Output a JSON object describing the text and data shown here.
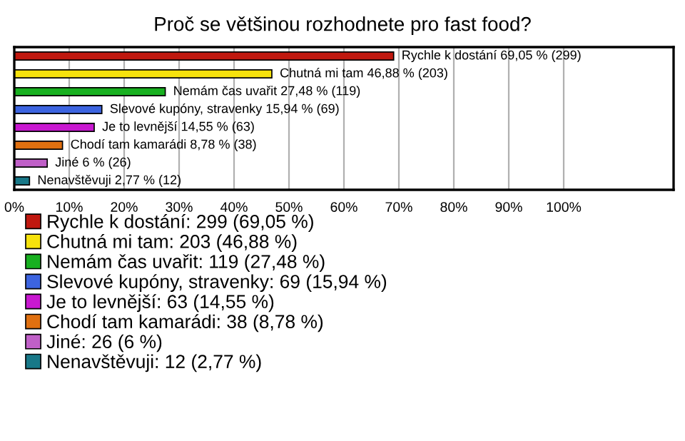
{
  "chart_data": {
    "type": "bar",
    "orientation": "horizontal",
    "title": "Proč se většinou rozhodnete pro fast food?",
    "categories": [
      null,
      null,
      null,
      null,
      null,
      null,
      null,
      null
    ],
    "series": [
      {
        "name": "Rychle k dostání: 299 (69,05 %)",
        "color": "#c0180f",
        "values": [
          69.05,
          null,
          null,
          null,
          null,
          null,
          null,
          null
        ],
        "value_labels": [
          "Rychle k dostání 69,05 % (299)",
          null,
          null,
          null,
          null,
          null,
          null,
          null
        ]
      },
      {
        "name": "Chutná mi tam: 203 (46,88 %)",
        "color": "#f6e20c",
        "values": [
          null,
          46.88,
          null,
          null,
          null,
          null,
          null,
          null
        ],
        "value_labels": [
          null,
          "Chutná mi tam 46,88 % (203)",
          null,
          null,
          null,
          null,
          null,
          null
        ]
      },
      {
        "name": "Nemám čas uvařit: 119 (27,48 %)",
        "color": "#18b020",
        "values": [
          null,
          null,
          27.48,
          null,
          null,
          null,
          null,
          null
        ],
        "value_labels": [
          null,
          null,
          "Nemám čas uvařit 27,48 % (119)",
          null,
          null,
          null,
          null,
          null
        ]
      },
      {
        "name": "Slevové kupóny, stravenky: 69 (15,94 %)",
        "color": "#3c64e0",
        "values": [
          null,
          null,
          null,
          15.94,
          null,
          null,
          null,
          null
        ],
        "value_labels": [
          null,
          null,
          null,
          "Slevové kupóny, stravenky 15,94 % (69)",
          null,
          null,
          null,
          null
        ]
      },
      {
        "name": "Je to levnější: 63 (14,55 %)",
        "color": "#c818d0",
        "values": [
          null,
          null,
          null,
          null,
          14.55,
          null,
          null,
          null
        ],
        "value_labels": [
          null,
          null,
          null,
          null,
          "Je to levnější 14,55 % (63)",
          null,
          null,
          null
        ]
      },
      {
        "name": "Chodí tam kamarádi: 38 (8,78 %)",
        "color": "#e07010",
        "values": [
          null,
          null,
          null,
          null,
          null,
          8.78,
          null,
          null
        ],
        "value_labels": [
          null,
          null,
          null,
          null,
          null,
          "Chodí tam kamarádi 8,78 % (38)",
          null,
          null
        ]
      },
      {
        "name": "Jiné: 26 (6 %)",
        "color": "#c060c8",
        "values": [
          null,
          null,
          null,
          null,
          null,
          null,
          6,
          null
        ],
        "value_labels": [
          null,
          null,
          null,
          null,
          null,
          null,
          "Jiné 6 % (26)",
          null
        ]
      },
      {
        "name": "Nenavštěvuji: 12 (2,77 %)",
        "color": "#187888",
        "values": [
          null,
          null,
          null,
          null,
          null,
          null,
          null,
          2.77
        ],
        "value_labels": [
          null,
          null,
          null,
          null,
          null,
          null,
          null,
          "Nenavštěvuji 2,77 % (12)"
        ]
      }
    ],
    "xlim": [
      0,
      120
    ],
    "xticks": [
      {
        "value": 0,
        "label": "0%"
      },
      {
        "value": 10,
        "label": "10%"
      },
      {
        "value": 20,
        "label": "20%"
      },
      {
        "value": 30,
        "label": "30%"
      },
      {
        "value": 40,
        "label": "40%"
      },
      {
        "value": 50,
        "label": "50%"
      },
      {
        "value": 60,
        "label": "60%"
      },
      {
        "value": 70,
        "label": "70%"
      },
      {
        "value": 80,
        "label": "80%"
      },
      {
        "value": 90,
        "label": "90%"
      },
      {
        "value": 100,
        "label": "100%"
      }
    ],
    "grid": "x",
    "legend": "bottom",
    "tick_labels": "x"
  }
}
